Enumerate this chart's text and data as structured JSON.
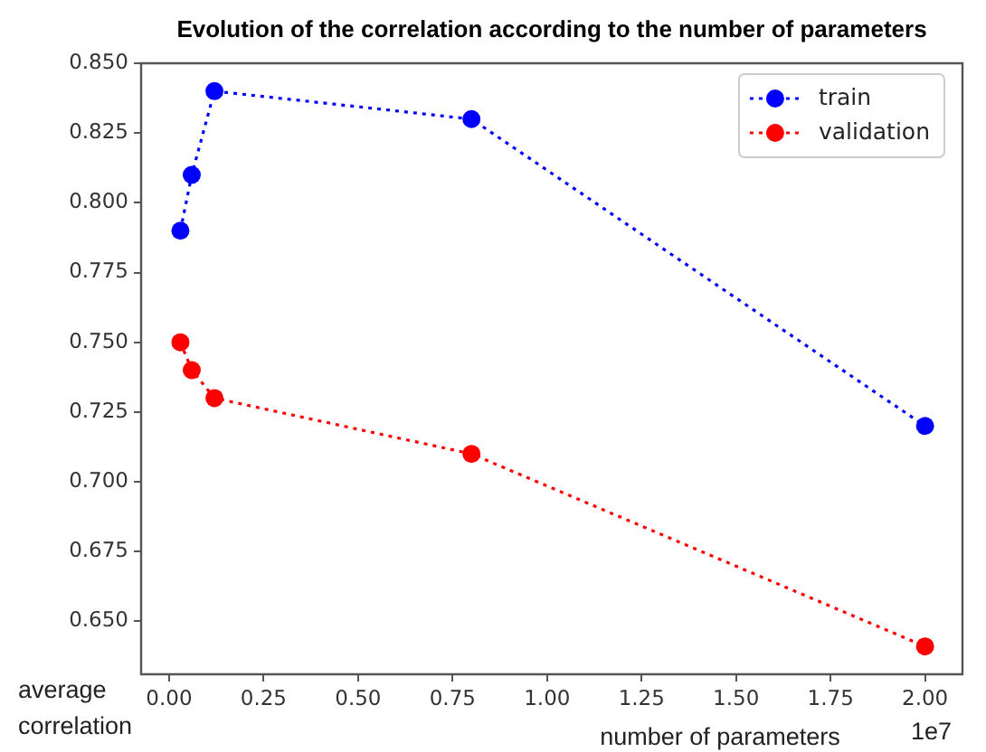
{
  "chart_data": {
    "type": "line",
    "title": "Evolution of the correlation according to the number of parameters",
    "xlabel": "number of parameters",
    "ylabel": "average correlation",
    "annotations": [
      "1e7"
    ],
    "x": [
      0.03,
      0.06,
      0.12,
      0.8,
      2.0
    ],
    "series": [
      {
        "name": "train",
        "color": "#0000ff",
        "values": [
          0.79,
          0.81,
          0.84,
          0.83,
          0.72
        ]
      },
      {
        "name": "validation",
        "color": "#ff0000",
        "values": [
          0.75,
          0.74,
          0.73,
          0.71,
          0.641
        ]
      }
    ],
    "xlim": [
      -0.074,
      2.099
    ],
    "xticks": [
      {
        "value": 0,
        "label": "0.00"
      },
      {
        "value": 0.25,
        "label": "0.25"
      },
      {
        "value": 0.5,
        "label": "0.50"
      },
      {
        "value": 0.75,
        "label": "0.75"
      },
      {
        "value": 1,
        "label": "1.00"
      },
      {
        "value": 1.25,
        "label": "1.25"
      },
      {
        "value": 1.5,
        "label": "1.50"
      },
      {
        "value": 1.75,
        "label": "1.75"
      },
      {
        "value": 2,
        "label": "2.00"
      }
    ],
    "ylim": [
      0.631,
      0.85
    ],
    "yticks": [
      {
        "value": 0.65,
        "label": "0.650"
      },
      {
        "value": 0.675,
        "label": "0.675"
      },
      {
        "value": 0.7,
        "label": "0.700"
      },
      {
        "value": 0.725,
        "label": "0.725"
      },
      {
        "value": 0.75,
        "label": "0.750"
      },
      {
        "value": 0.775,
        "label": "0.775"
      },
      {
        "value": 0.8,
        "label": "0.800"
      },
      {
        "value": 0.825,
        "label": "0.825"
      },
      {
        "value": 0.85,
        "label": "0.850"
      }
    ],
    "legend": "top right",
    "marker": "circle",
    "line_style": "dotted"
  }
}
